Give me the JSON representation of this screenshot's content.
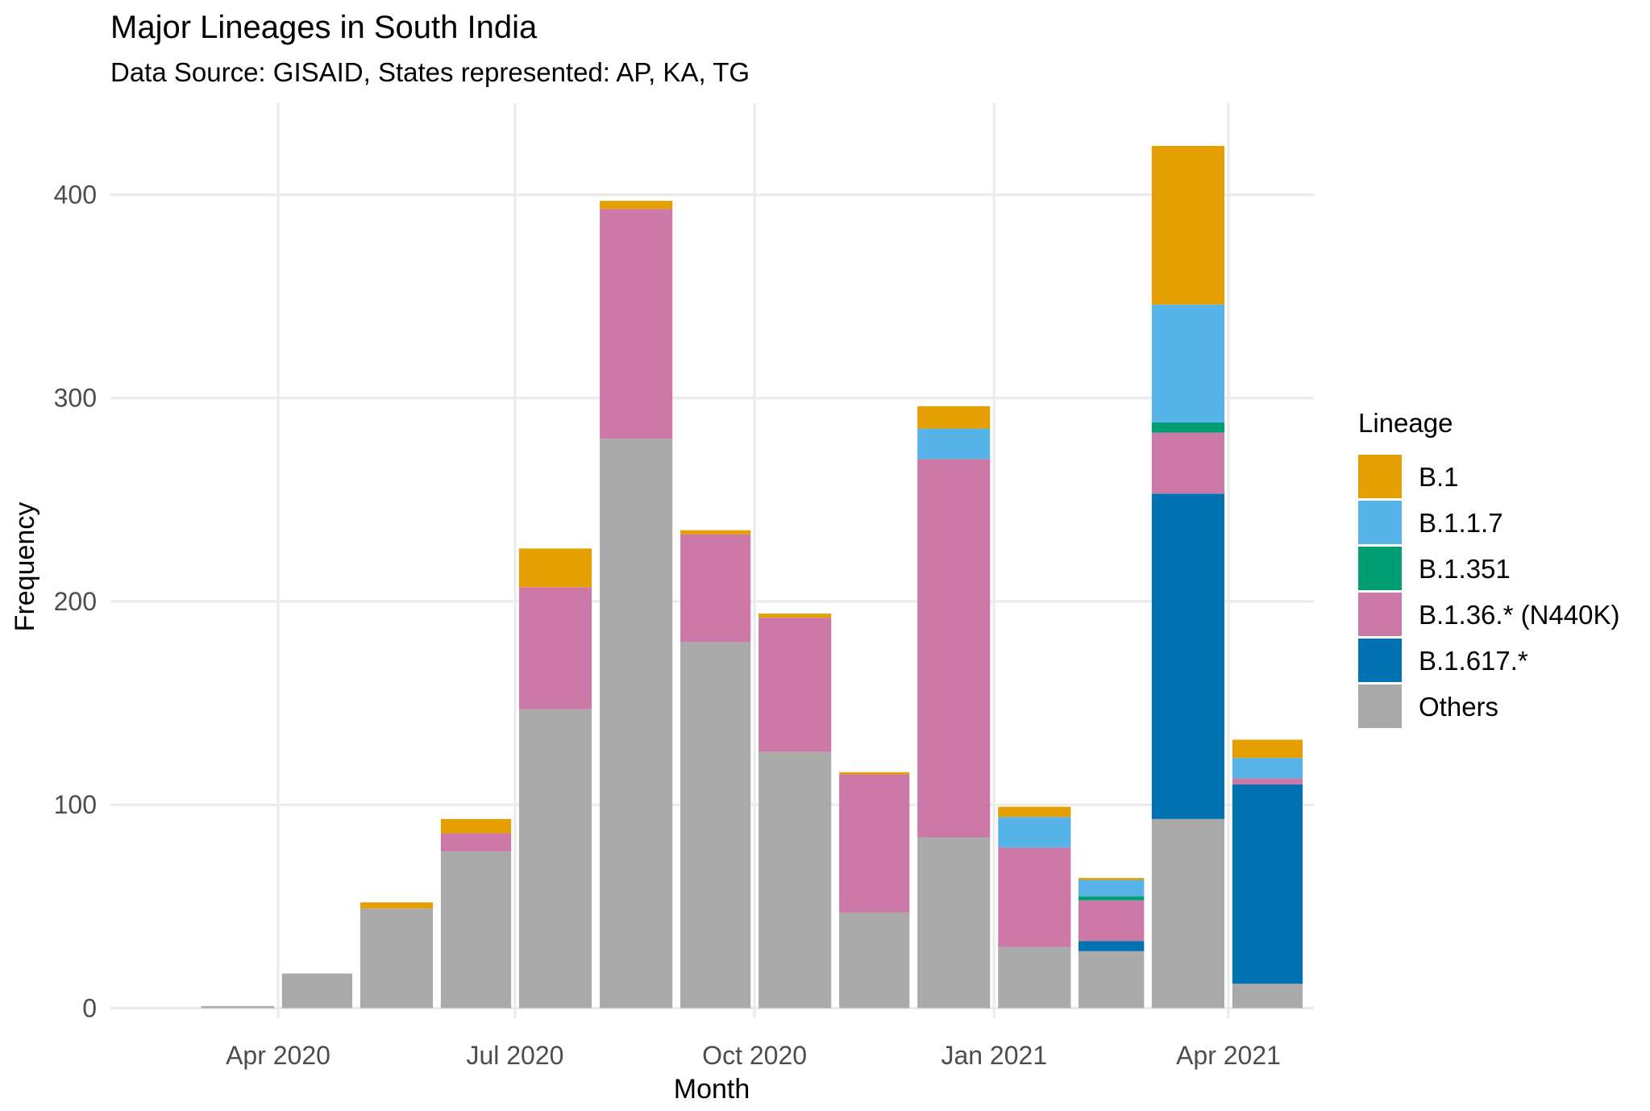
{
  "chart_data": {
    "type": "bar",
    "stacked": true,
    "title": "Major Lineages in South India",
    "subtitle": "Data Source: GISAID, States represented: AP, KA, TG",
    "xlabel": "Month",
    "ylabel": "Frequency",
    "ylim": [
      -5,
      445
    ],
    "y_ticks": [
      0,
      100,
      200,
      300,
      400
    ],
    "x_ticks": [
      "Apr 2020",
      "Jul 2020",
      "Oct 2020",
      "Jan 2021",
      "Apr 2021"
    ],
    "grid": true,
    "legend": {
      "title": "Lineage",
      "position": "right"
    },
    "series_order_bottom_to_top": [
      "Others",
      "B.1.617.*",
      "B.1.36.* (N440K)",
      "B.1.351",
      "B.1.1.7",
      "B.1"
    ],
    "legend_order": [
      "B.1",
      "B.1.1.7",
      "B.1.351",
      "B.1.36.* (N440K)",
      "B.1.617.*",
      "Others"
    ],
    "colors": {
      "B.1": "#E69F00",
      "B.1.1.7": "#56B4E9",
      "B.1.351": "#009E73",
      "B.1.36.* (N440K)": "#CC79A7",
      "B.1.617.*": "#0072B2",
      "Others": "#AAAAAA"
    },
    "bars": [
      {
        "date": "2020-03-01",
        "values": {
          "Others": 1
        }
      },
      {
        "date": "2020-04-01",
        "values": {
          "Others": 17
        }
      },
      {
        "date": "2020-05-01",
        "values": {
          "Others": 49,
          "B.1": 3
        }
      },
      {
        "date": "2020-06-01",
        "values": {
          "Others": 77,
          "B.1.36.* (N440K)": 9,
          "B.1": 7
        }
      },
      {
        "date": "2020-07-01",
        "values": {
          "Others": 147,
          "B.1.36.* (N440K)": 60,
          "B.1": 19
        }
      },
      {
        "date": "2020-08-01",
        "values": {
          "Others": 280,
          "B.1.36.* (N440K)": 113,
          "B.1": 4
        }
      },
      {
        "date": "2020-09-01",
        "values": {
          "Others": 180,
          "B.1.36.* (N440K)": 53,
          "B.1": 2
        }
      },
      {
        "date": "2020-10-01",
        "values": {
          "Others": 126,
          "B.1.36.* (N440K)": 66,
          "B.1": 2
        }
      },
      {
        "date": "2020-11-01",
        "values": {
          "Others": 47,
          "B.1.36.* (N440K)": 68,
          "B.1": 1
        }
      },
      {
        "date": "2020-12-01",
        "values": {
          "Others": 84,
          "B.1.36.* (N440K)": 186,
          "B.1.1.7": 15,
          "B.1": 11
        }
      },
      {
        "date": "2021-01-01",
        "values": {
          "Others": 30,
          "B.1.36.* (N440K)": 49,
          "B.1.1.7": 15,
          "B.1": 5
        }
      },
      {
        "date": "2021-02-01",
        "values": {
          "Others": 28,
          "B.1.617.*": 5,
          "B.1.36.* (N440K)": 20,
          "B.1.351": 2,
          "B.1.1.7": 8,
          "B.1": 1
        }
      },
      {
        "date": "2021-03-01",
        "values": {
          "Others": 93,
          "B.1.617.*": 160,
          "B.1.36.* (N440K)": 30,
          "B.1.351": 5,
          "B.1.1.7": 58,
          "B.1": 78
        }
      },
      {
        "date": "2021-04-01",
        "values": {
          "Others": 12,
          "B.1.617.*": 98,
          "B.1.36.* (N440K)": 3,
          "B.1.1.7": 10,
          "B.1": 9
        }
      }
    ]
  }
}
